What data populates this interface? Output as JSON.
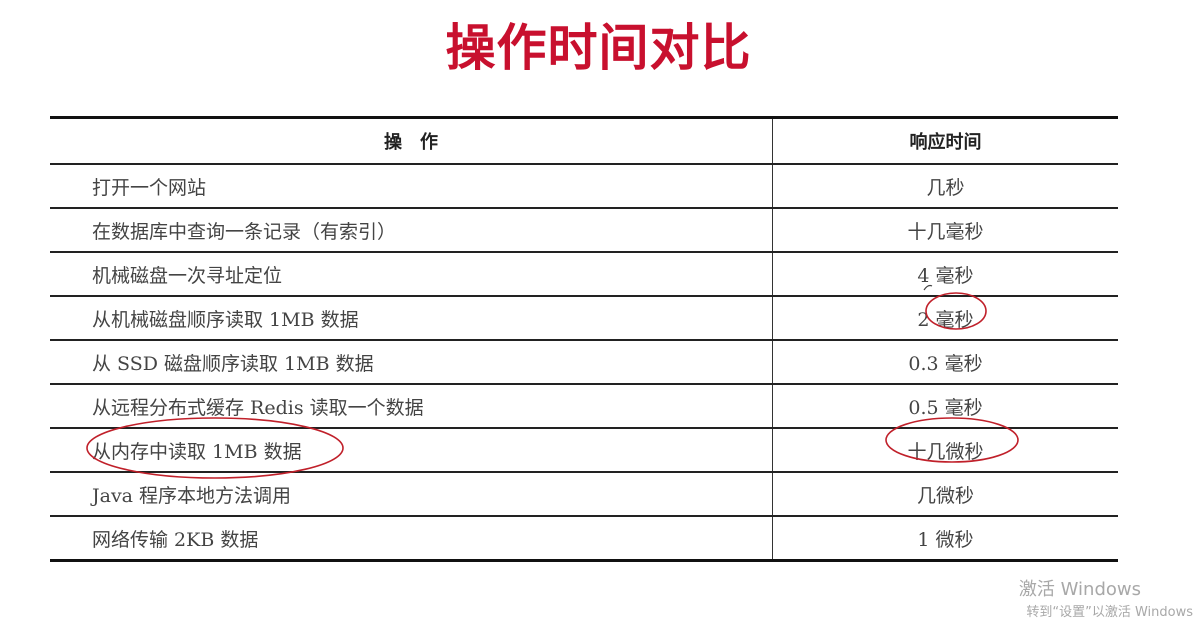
{
  "title": "操作时间对比",
  "table": {
    "headers": [
      "操　作",
      "响应时间"
    ],
    "rows": [
      {
        "operation": "打开一个网站",
        "time": "几秒"
      },
      {
        "operation": "在数据库中查询一条记录（有索引）",
        "time": "十几毫秒"
      },
      {
        "operation": "机械磁盘一次寻址定位",
        "time": "4 毫秒"
      },
      {
        "operation": "从机械磁盘顺序读取 1MB 数据",
        "time": "2 毫秒"
      },
      {
        "operation": "从 SSD 磁盘顺序读取 1MB 数据",
        "time": "0.3 毫秒"
      },
      {
        "operation": "从远程分布式缓存 Redis 读取一个数据",
        "time": "0.5 毫秒"
      },
      {
        "operation": "从内存中读取 1MB 数据",
        "time": "十几微秒"
      },
      {
        "operation": "Java 程序本地方法调用",
        "time": "几微秒"
      },
      {
        "operation": "网络传输 2KB 数据",
        "time": "1 微秒"
      }
    ]
  },
  "annotation_color": "#c0202a",
  "watermark": {
    "line1": "激活 Windows",
    "line2": "转到“设置”以激活 Windows"
  }
}
